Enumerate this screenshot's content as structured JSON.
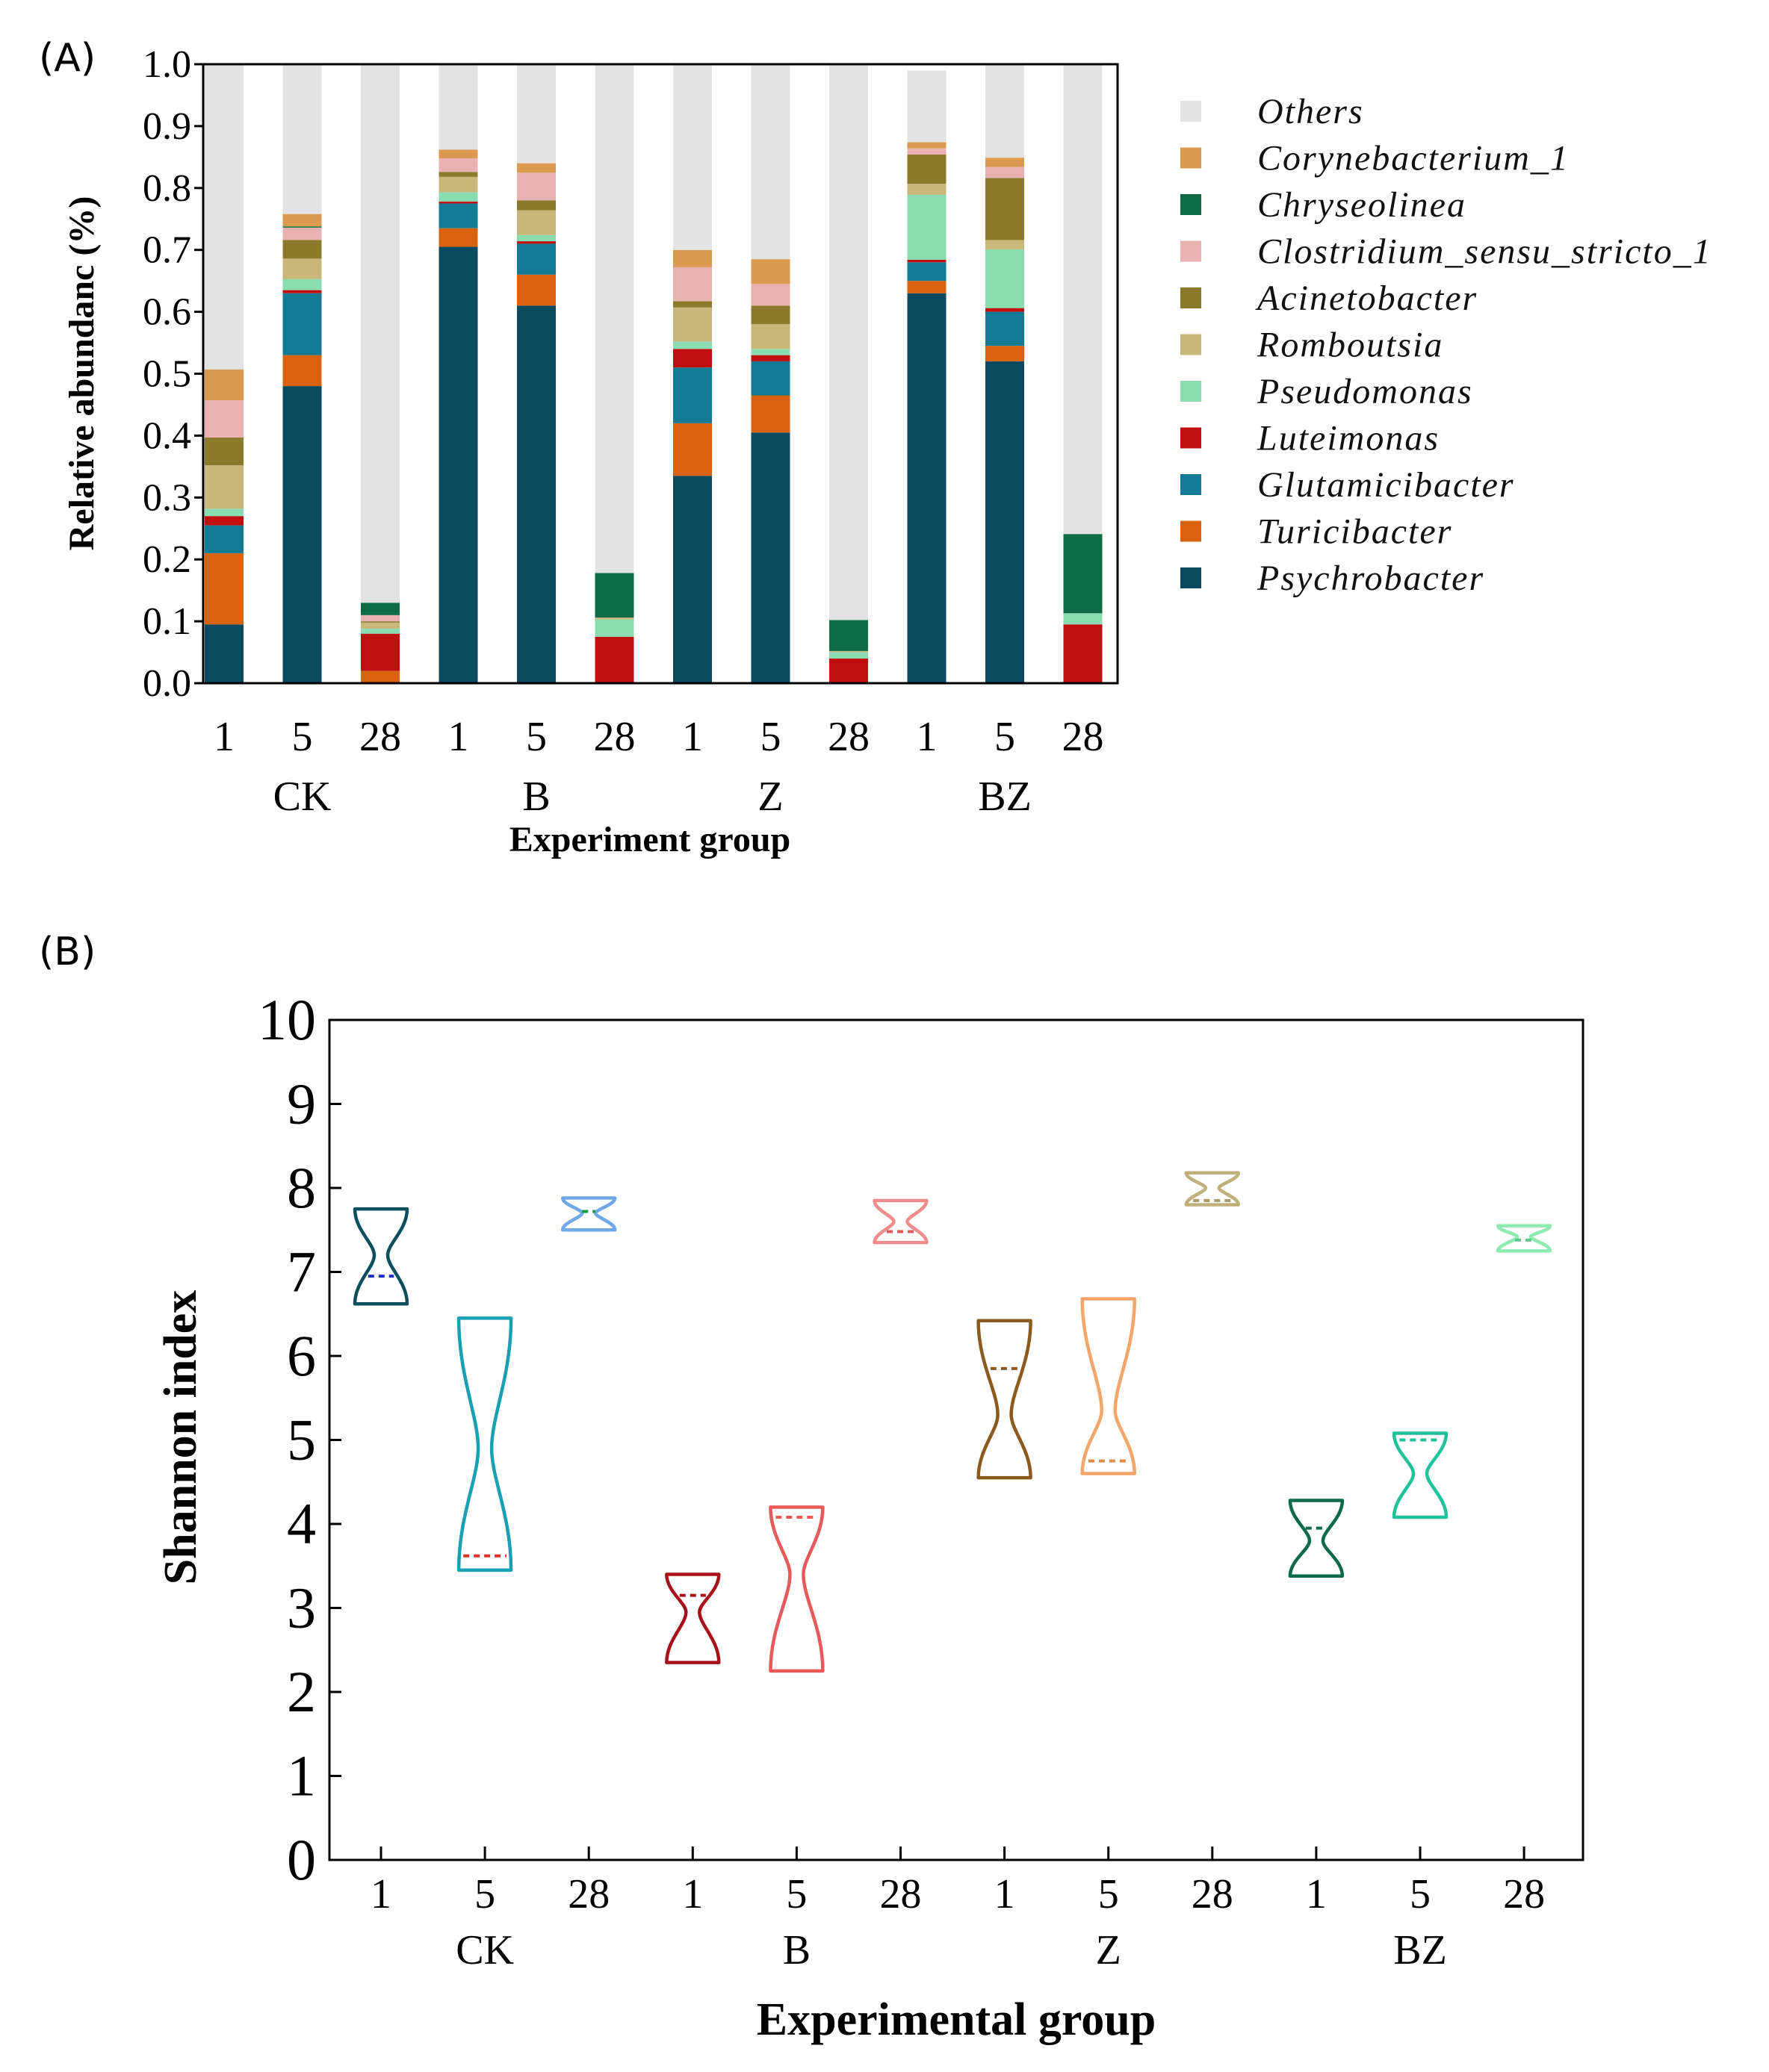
{
  "panels": {
    "a": "(A)",
    "b": "(B)"
  },
  "chart_data": [
    {
      "type": "bar",
      "stacked": true,
      "title": "",
      "xlabel": "Experiment group",
      "ylabel": "Relative abundanc (%)",
      "ylim": [
        0,
        1.0
      ],
      "yticks": [
        "0.0",
        "0.1",
        "0.2",
        "0.3",
        "0.4",
        "0.5",
        "0.6",
        "0.7",
        "0.8",
        "0.9",
        "1.0"
      ],
      "categories": [
        "1",
        "5",
        "28",
        "1",
        "5",
        "28",
        "1",
        "5",
        "28",
        "1",
        "5",
        "28"
      ],
      "groups": [
        {
          "name": "CK",
          "start": 0,
          "end": 2
        },
        {
          "name": "B",
          "start": 3,
          "end": 5
        },
        {
          "name": "Z",
          "start": 6,
          "end": 8
        },
        {
          "name": "BZ",
          "start": 9,
          "end": 11
        }
      ],
      "legend_position": "right",
      "series": [
        {
          "name": "Psychrobacter",
          "color": "#0b4a5e",
          "values": [
            0.095,
            0.48,
            0.0,
            0.705,
            0.61,
            0.0,
            0.335,
            0.405,
            0.0,
            0.63,
            0.52,
            0.0
          ]
        },
        {
          "name": "Turicibacter",
          "color": "#d9620f",
          "values": [
            0.115,
            0.05,
            0.02,
            0.03,
            0.05,
            0.0,
            0.085,
            0.06,
            0.0,
            0.02,
            0.025,
            0.0
          ]
        },
        {
          "name": "Glutamicibacter",
          "color": "#137b95",
          "values": [
            0.045,
            0.1,
            0.0,
            0.04,
            0.05,
            0.0,
            0.09,
            0.055,
            0.0,
            0.03,
            0.055,
            0.0
          ]
        },
        {
          "name": "Luteimonas",
          "color": "#c00f10",
          "values": [
            0.015,
            0.005,
            0.06,
            0.003,
            0.004,
            0.075,
            0.03,
            0.01,
            0.04,
            0.004,
            0.006,
            0.095
          ]
        },
        {
          "name": "Pseudomonas",
          "color": "#89ddb0",
          "values": [
            0.012,
            0.018,
            0.008,
            0.015,
            0.01,
            0.028,
            0.012,
            0.01,
            0.01,
            0.105,
            0.095,
            0.018
          ]
        },
        {
          "name": "Romboutsia",
          "color": "#c9b67a",
          "values": [
            0.07,
            0.033,
            0.01,
            0.025,
            0.04,
            0.003,
            0.055,
            0.04,
            0.002,
            0.018,
            0.015,
            0.0
          ]
        },
        {
          "name": "Acinetobacter",
          "color": "#8c7a2c",
          "values": [
            0.045,
            0.03,
            0.002,
            0.008,
            0.016,
            0.0,
            0.01,
            0.03,
            0.0,
            0.047,
            0.1,
            0.0
          ]
        },
        {
          "name": "Clostridium_sensu_stricto_1",
          "color": "#e8b2b2",
          "values": [
            0.06,
            0.02,
            0.01,
            0.022,
            0.045,
            0.0,
            0.055,
            0.035,
            0.0,
            0.01,
            0.018,
            0.0
          ]
        },
        {
          "name": "Chryseolinea",
          "color": "#0f6b44",
          "values": [
            0.0,
            0.002,
            0.02,
            0.0,
            0.0,
            0.072,
            0.0,
            0.0,
            0.05,
            0.0,
            0.0,
            0.128
          ]
        },
        {
          "name": "Corynebacterium_1",
          "color": "#dc9a50",
          "values": [
            0.05,
            0.02,
            0.0,
            0.014,
            0.015,
            0.0,
            0.028,
            0.04,
            0.0,
            0.01,
            0.015,
            0.0
          ]
        },
        {
          "name": "Others",
          "color": "#e3e3e3",
          "values": [
            0.493,
            0.242,
            0.87,
            0.138,
            0.16,
            0.822,
            0.3,
            0.315,
            0.898,
            0.116,
            0.151,
            0.759
          ]
        }
      ]
    },
    {
      "type": "violin",
      "title": "",
      "xlabel": "Experimental group",
      "ylabel": "Shannon index",
      "ylim": [
        0,
        10
      ],
      "yticks": [
        "0",
        "1",
        "2",
        "3",
        "4",
        "5",
        "6",
        "7",
        "8",
        "9",
        "10"
      ],
      "categories": [
        "1",
        "5",
        "28",
        "1",
        "5",
        "28",
        "1",
        "5",
        "28",
        "1",
        "5",
        "28"
      ],
      "groups": [
        {
          "name": "CK",
          "start": 0,
          "end": 2
        },
        {
          "name": "B",
          "start": 3,
          "end": 5
        },
        {
          "name": "Z",
          "start": 6,
          "end": 8
        },
        {
          "name": "BZ",
          "start": 9,
          "end": 11
        }
      ],
      "series": [
        {
          "name": "CK-1",
          "color": "#0b4f5f",
          "median_color": "#1f2fc8",
          "min": 6.62,
          "max": 7.75,
          "median": 6.95,
          "waist": 7.2
        },
        {
          "name": "CK-5",
          "color": "#19a0b2",
          "median_color": "#e0302a",
          "min": 3.45,
          "max": 6.45,
          "median": 3.62,
          "waist": 4.9
        },
        {
          "name": "CK-28",
          "color": "#6fa8e6",
          "median_color": "#1a9a3c",
          "min": 7.5,
          "max": 7.88,
          "median": 7.72,
          "waist": 7.7
        },
        {
          "name": "B-1",
          "color": "#a8101a",
          "median_color": "#a8101a",
          "min": 2.35,
          "max": 3.4,
          "median": 3.15,
          "waist": 2.95
        },
        {
          "name": "B-5",
          "color": "#e85a5a",
          "median_color": "#e85a5a",
          "min": 2.25,
          "max": 4.2,
          "median": 4.08,
          "waist": 3.4
        },
        {
          "name": "B-28",
          "color": "#f08c8c",
          "median_color": "#e25a5a",
          "min": 7.35,
          "max": 7.85,
          "median": 7.48,
          "waist": 7.6
        },
        {
          "name": "Z-1",
          "color": "#8a5a1e",
          "median_color": "#8a5a1e",
          "min": 4.55,
          "max": 6.42,
          "median": 5.85,
          "waist": 5.3
        },
        {
          "name": "Z-5",
          "color": "#f4a66a",
          "median_color": "#e08a4a",
          "min": 4.6,
          "max": 6.68,
          "median": 4.75,
          "waist": 5.35
        },
        {
          "name": "Z-28",
          "color": "#bfb07c",
          "median_color": "#a89a66",
          "min": 7.8,
          "max": 8.18,
          "median": 7.85,
          "waist": 8.0
        },
        {
          "name": "BZ-1",
          "color": "#0d6a4c",
          "median_color": "#0d6a4c",
          "min": 3.38,
          "max": 4.28,
          "median": 3.95,
          "waist": 3.8
        },
        {
          "name": "BZ-5",
          "color": "#20c29a",
          "median_color": "#20c29a",
          "min": 4.08,
          "max": 5.08,
          "median": 5.0,
          "waist": 4.6
        },
        {
          "name": "BZ-28",
          "color": "#8eeab0",
          "median_color": "#58c88c",
          "min": 7.25,
          "max": 7.55,
          "median": 7.38,
          "waist": 7.42
        }
      ]
    }
  ]
}
